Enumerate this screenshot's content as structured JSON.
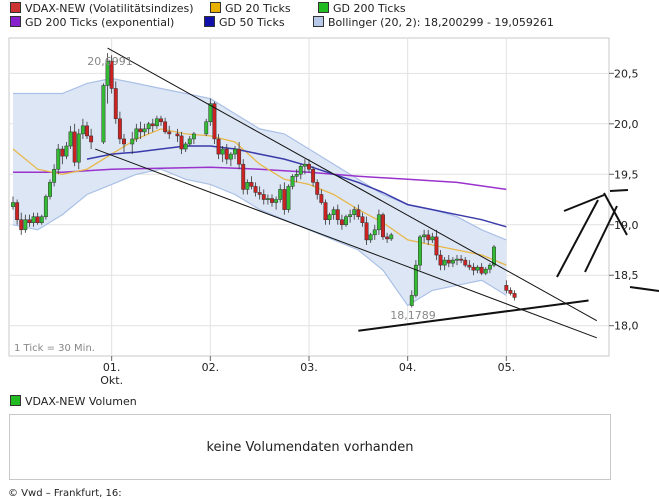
{
  "legend": {
    "items": [
      {
        "label": "VDAX-NEW (Volatilitätsindizes)",
        "color": "#cc3333"
      },
      {
        "label": "GD 20 Ticks",
        "color": "#e8b000"
      },
      {
        "label": "GD 200 Ticks",
        "color": "#22bb22"
      },
      {
        "label": "GD 200 Ticks (exponential)",
        "color": "#8822cc"
      },
      {
        "label": "GD 50 Ticks",
        "color": "#1111aa"
      },
      {
        "label": "Bollinger (20, 2): 18,200299 - 19,059261",
        "color": "#b8c8e8"
      }
    ]
  },
  "chart_data": {
    "type": "candlestick",
    "y_ticks": [
      "20,5",
      "20,0",
      "19,5",
      "19,0",
      "18,5",
      "18,0"
    ],
    "y_tick_values": [
      20.5,
      20.0,
      19.5,
      19.0,
      18.5,
      18.0
    ],
    "ylim": [
      17.7,
      20.85
    ],
    "x_ticks": [
      {
        "label": "01.",
        "sublabel": "Okt.",
        "index": 24
      },
      {
        "label": "02.",
        "sublabel": "",
        "index": 48
      },
      {
        "label": "03.",
        "sublabel": "",
        "index": 72
      },
      {
        "label": "04.",
        "sublabel": "",
        "index": 96
      },
      {
        "label": "05.",
        "sublabel": "",
        "index": 120
      }
    ],
    "n_slots": 144,
    "annotations": {
      "high_label": "20,6991",
      "low_label": "18,1789",
      "interval_label": "1 Tick = 30 Min."
    },
    "candles": [
      [
        0,
        19.18,
        19.28,
        19.15,
        19.22
      ],
      [
        1,
        19.22,
        19.25,
        19.0,
        19.05
      ],
      [
        2,
        19.05,
        19.12,
        18.9,
        18.95
      ],
      [
        3,
        18.95,
        19.1,
        18.92,
        19.05
      ],
      [
        4,
        19.05,
        19.1,
        18.98,
        19.02
      ],
      [
        5,
        19.02,
        19.12,
        18.98,
        19.08
      ],
      [
        6,
        19.08,
        19.12,
        19.0,
        19.02
      ],
      [
        7,
        19.02,
        19.1,
        19.0,
        19.08
      ],
      [
        8,
        19.08,
        19.3,
        19.05,
        19.28
      ],
      [
        9,
        19.28,
        19.45,
        19.25,
        19.42
      ],
      [
        10,
        19.42,
        19.6,
        19.38,
        19.55
      ],
      [
        11,
        19.55,
        19.8,
        19.5,
        19.75
      ],
      [
        12,
        19.75,
        19.78,
        19.6,
        19.68
      ],
      [
        13,
        19.68,
        19.82,
        19.65,
        19.78
      ],
      [
        14,
        19.78,
        19.98,
        19.75,
        19.92
      ],
      [
        15,
        19.92,
        20.0,
        19.58,
        19.62
      ],
      [
        16,
        19.62,
        19.95,
        19.55,
        19.9
      ],
      [
        17,
        19.9,
        20.05,
        19.85,
        19.98
      ],
      [
        18,
        19.98,
        20.02,
        19.85,
        19.88
      ],
      [
        19,
        19.88,
        19.95,
        19.75,
        19.82
      ],
      [
        22,
        19.82,
        20.4,
        19.8,
        20.38
      ],
      [
        23,
        20.38,
        20.7,
        20.2,
        20.62
      ],
      [
        24,
        20.62,
        20.68,
        20.3,
        20.35
      ],
      [
        25,
        20.35,
        20.42,
        20.0,
        20.05
      ],
      [
        26,
        20.05,
        20.12,
        19.8,
        19.85
      ],
      [
        27,
        19.85,
        19.9,
        19.72,
        19.8
      ],
      [
        29,
        19.8,
        19.92,
        19.7,
        19.85
      ],
      [
        30,
        19.85,
        20.0,
        19.82,
        19.95
      ],
      [
        31,
        19.95,
        20.02,
        19.85,
        19.92
      ],
      [
        32,
        19.92,
        20.0,
        19.88,
        19.95
      ],
      [
        33,
        19.95,
        20.02,
        19.9,
        20.0
      ],
      [
        34,
        20.0,
        20.05,
        19.92,
        19.98
      ],
      [
        35,
        19.98,
        20.08,
        19.95,
        20.05
      ],
      [
        36,
        20.05,
        20.08,
        19.98,
        20.02
      ],
      [
        37,
        20.02,
        20.06,
        19.9,
        19.92
      ],
      [
        38,
        19.92,
        19.98,
        19.85,
        19.9
      ],
      [
        40,
        19.9,
        19.95,
        19.82,
        19.88
      ],
      [
        41,
        19.88,
        19.92,
        19.7,
        19.75
      ],
      [
        42,
        19.75,
        19.82,
        19.72,
        19.8
      ],
      [
        43,
        19.8,
        19.88,
        19.78,
        19.85
      ],
      [
        44,
        19.85,
        19.92,
        19.8,
        19.9
      ],
      [
        47,
        19.9,
        20.05,
        19.88,
        20.02
      ],
      [
        48,
        20.02,
        20.25,
        19.98,
        20.2
      ],
      [
        49,
        20.2,
        20.22,
        19.8,
        19.85
      ],
      [
        50,
        19.85,
        19.9,
        19.65,
        19.7
      ],
      [
        51,
        19.7,
        19.78,
        19.62,
        19.75
      ],
      [
        52,
        19.75,
        19.8,
        19.6,
        19.65
      ],
      [
        53,
        19.65,
        19.72,
        19.58,
        19.7
      ],
      [
        54,
        19.7,
        19.78,
        19.65,
        19.75
      ],
      [
        55,
        19.75,
        19.82,
        19.55,
        19.6
      ],
      [
        56,
        19.6,
        19.65,
        19.3,
        19.35
      ],
      [
        57,
        19.35,
        19.45,
        19.3,
        19.42
      ],
      [
        58,
        19.42,
        19.48,
        19.35,
        19.38
      ],
      [
        59,
        19.38,
        19.42,
        19.28,
        19.32
      ],
      [
        60,
        19.32,
        19.38,
        19.25,
        19.3
      ],
      [
        61,
        19.3,
        19.35,
        19.2,
        19.25
      ],
      [
        62,
        19.25,
        19.3,
        19.2,
        19.26
      ],
      [
        63,
        19.26,
        19.3,
        19.18,
        19.22
      ],
      [
        64,
        19.22,
        19.28,
        19.15,
        19.25
      ],
      [
        65,
        19.25,
        19.4,
        19.22,
        19.35
      ],
      [
        66,
        19.35,
        19.42,
        19.1,
        19.15
      ],
      [
        67,
        19.15,
        19.4,
        19.12,
        19.38
      ],
      [
        68,
        19.38,
        19.5,
        19.35,
        19.48
      ],
      [
        69,
        19.48,
        19.55,
        19.42,
        19.5
      ],
      [
        70,
        19.5,
        19.6,
        19.45,
        19.58
      ],
      [
        71,
        19.58,
        19.65,
        19.5,
        19.6
      ],
      [
        72,
        19.6,
        19.65,
        19.52,
        19.55
      ],
      [
        73,
        19.55,
        19.58,
        19.38,
        19.42
      ],
      [
        74,
        19.42,
        19.45,
        19.25,
        19.3
      ],
      [
        75,
        19.3,
        19.35,
        19.2,
        19.22
      ],
      [
        76,
        19.22,
        19.25,
        19.0,
        19.05
      ],
      [
        77,
        19.05,
        19.12,
        19.0,
        19.1
      ],
      [
        78,
        19.1,
        19.18,
        19.05,
        19.15
      ],
      [
        79,
        19.15,
        19.2,
        19.0,
        19.05
      ],
      [
        80,
        19.05,
        19.1,
        18.95,
        19.0
      ],
      [
        81,
        19.0,
        19.1,
        18.98,
        19.08
      ],
      [
        82,
        19.08,
        19.15,
        19.02,
        19.1
      ],
      [
        83,
        19.1,
        19.18,
        19.05,
        19.15
      ],
      [
        84,
        19.15,
        19.2,
        19.05,
        19.08
      ],
      [
        85,
        19.08,
        19.12,
        18.98,
        19.02
      ],
      [
        86,
        19.02,
        19.08,
        18.8,
        18.85
      ],
      [
        87,
        18.85,
        18.92,
        18.82,
        18.9
      ],
      [
        88,
        18.9,
        19.0,
        18.85,
        18.95
      ],
      [
        89,
        18.95,
        19.15,
        18.9,
        19.1
      ],
      [
        90,
        19.1,
        19.12,
        18.85,
        18.88
      ],
      [
        91,
        18.88,
        18.92,
        18.82,
        18.86
      ],
      [
        92,
        18.86,
        18.92,
        18.84,
        18.9
      ],
      [
        97,
        18.2,
        18.35,
        18.18,
        18.3
      ],
      [
        98,
        18.3,
        18.65,
        18.28,
        18.6
      ],
      [
        99,
        18.6,
        18.9,
        18.55,
        18.88
      ],
      [
        100,
        18.88,
        18.95,
        18.82,
        18.9
      ],
      [
        101,
        18.9,
        18.95,
        18.8,
        18.85
      ],
      [
        102,
        18.85,
        18.92,
        18.82,
        18.88
      ],
      [
        103,
        18.88,
        18.95,
        18.65,
        18.7
      ],
      [
        104,
        18.7,
        18.75,
        18.55,
        18.6
      ],
      [
        105,
        18.6,
        18.68,
        18.55,
        18.65
      ],
      [
        106,
        18.65,
        18.7,
        18.58,
        18.62
      ],
      [
        107,
        18.62,
        18.68,
        18.58,
        18.65
      ],
      [
        108,
        18.65,
        18.7,
        18.6,
        18.66
      ],
      [
        109,
        18.66,
        18.7,
        18.62,
        18.65
      ],
      [
        110,
        18.65,
        18.68,
        18.58,
        18.6
      ],
      [
        111,
        18.6,
        18.65,
        18.55,
        18.58
      ],
      [
        112,
        18.58,
        18.62,
        18.5,
        18.55
      ],
      [
        113,
        18.55,
        18.6,
        18.52,
        18.58
      ],
      [
        114,
        18.58,
        18.62,
        18.5,
        18.52
      ],
      [
        115,
        18.52,
        18.58,
        18.5,
        18.56
      ],
      [
        116,
        18.56,
        18.62,
        18.52,
        18.6
      ],
      [
        117,
        18.6,
        18.8,
        18.58,
        18.78
      ],
      [
        120,
        18.4,
        18.45,
        18.32,
        18.35
      ],
      [
        121,
        18.35,
        18.38,
        18.3,
        18.32
      ],
      [
        122,
        18.32,
        18.35,
        18.25,
        18.28
      ]
    ],
    "bollinger_upper": [
      [
        0,
        20.3
      ],
      [
        6,
        20.3
      ],
      [
        12,
        20.3
      ],
      [
        18,
        20.4
      ],
      [
        24,
        20.45
      ],
      [
        30,
        20.4
      ],
      [
        36,
        20.35
      ],
      [
        42,
        20.3
      ],
      [
        48,
        20.25
      ],
      [
        54,
        20.1
      ],
      [
        60,
        19.95
      ],
      [
        66,
        19.9
      ],
      [
        72,
        19.75
      ],
      [
        78,
        19.6
      ],
      [
        84,
        19.45
      ],
      [
        90,
        19.3
      ],
      [
        96,
        19.2
      ],
      [
        102,
        19.15
      ],
      [
        108,
        19.08
      ],
      [
        114,
        18.95
      ],
      [
        120,
        18.85
      ]
    ],
    "bollinger_lower": [
      [
        0,
        19.0
      ],
      [
        6,
        18.95
      ],
      [
        12,
        19.1
      ],
      [
        18,
        19.3
      ],
      [
        24,
        19.4
      ],
      [
        30,
        19.5
      ],
      [
        36,
        19.55
      ],
      [
        42,
        19.45
      ],
      [
        48,
        19.4
      ],
      [
        54,
        19.3
      ],
      [
        60,
        19.15
      ],
      [
        66,
        19.05
      ],
      [
        72,
        18.95
      ],
      [
        78,
        18.85
      ],
      [
        84,
        18.75
      ],
      [
        90,
        18.55
      ],
      [
        96,
        18.2
      ],
      [
        102,
        18.35
      ],
      [
        108,
        18.4
      ],
      [
        114,
        18.45
      ],
      [
        120,
        18.3
      ]
    ],
    "gd20": [
      [
        0,
        19.75
      ],
      [
        6,
        19.55
      ],
      [
        12,
        19.5
      ],
      [
        18,
        19.55
      ],
      [
        24,
        19.7
      ],
      [
        30,
        19.85
      ],
      [
        36,
        19.95
      ],
      [
        42,
        19.9
      ],
      [
        48,
        19.88
      ],
      [
        54,
        19.82
      ],
      [
        60,
        19.6
      ],
      [
        66,
        19.45
      ],
      [
        72,
        19.4
      ],
      [
        78,
        19.3
      ],
      [
        84,
        19.15
      ],
      [
        90,
        19.02
      ],
      [
        96,
        18.85
      ],
      [
        102,
        18.8
      ],
      [
        108,
        18.75
      ],
      [
        114,
        18.7
      ],
      [
        120,
        18.6
      ]
    ],
    "gd50": [
      [
        18,
        19.65
      ],
      [
        24,
        19.7
      ],
      [
        30,
        19.72
      ],
      [
        36,
        19.75
      ],
      [
        42,
        19.78
      ],
      [
        48,
        19.78
      ],
      [
        54,
        19.75
      ],
      [
        60,
        19.7
      ],
      [
        66,
        19.65
      ],
      [
        72,
        19.58
      ],
      [
        78,
        19.5
      ],
      [
        84,
        19.42
      ],
      [
        90,
        19.32
      ],
      [
        96,
        19.2
      ],
      [
        102,
        19.15
      ],
      [
        108,
        19.1
      ],
      [
        114,
        19.05
      ],
      [
        120,
        18.98
      ]
    ],
    "gd200_exp": [
      [
        0,
        19.52
      ],
      [
        12,
        19.52
      ],
      [
        24,
        19.55
      ],
      [
        36,
        19.56
      ],
      [
        48,
        19.57
      ],
      [
        60,
        19.55
      ],
      [
        72,
        19.52
      ],
      [
        84,
        19.48
      ],
      [
        96,
        19.45
      ],
      [
        108,
        19.42
      ],
      [
        120,
        19.35
      ]
    ],
    "trendlines": [
      {
        "from": [
          23,
          20.75
        ],
        "to": [
          142,
          18.05
        ]
      },
      {
        "from": [
          20,
          19.75
        ],
        "to": [
          142,
          17.88
        ]
      },
      {
        "from": [
          84,
          17.95
        ],
        "to": [
          140,
          18.25
        ]
      }
    ]
  },
  "overlay_annotations": [
    "M630,287 L659,291",
    "M564,211 L604,195",
    "M557,277 L598,200",
    "M585,272 L617,206",
    "M604,193 L627,235",
    "M610,191 L628,190"
  ],
  "volume": {
    "legend_label": "VDAX-NEW Volumen",
    "legend_color": "#22bb22",
    "message": "keine Volumendaten vorhanden"
  },
  "footer": {
    "text": "© Vwd – Frankfurt, 16:"
  }
}
